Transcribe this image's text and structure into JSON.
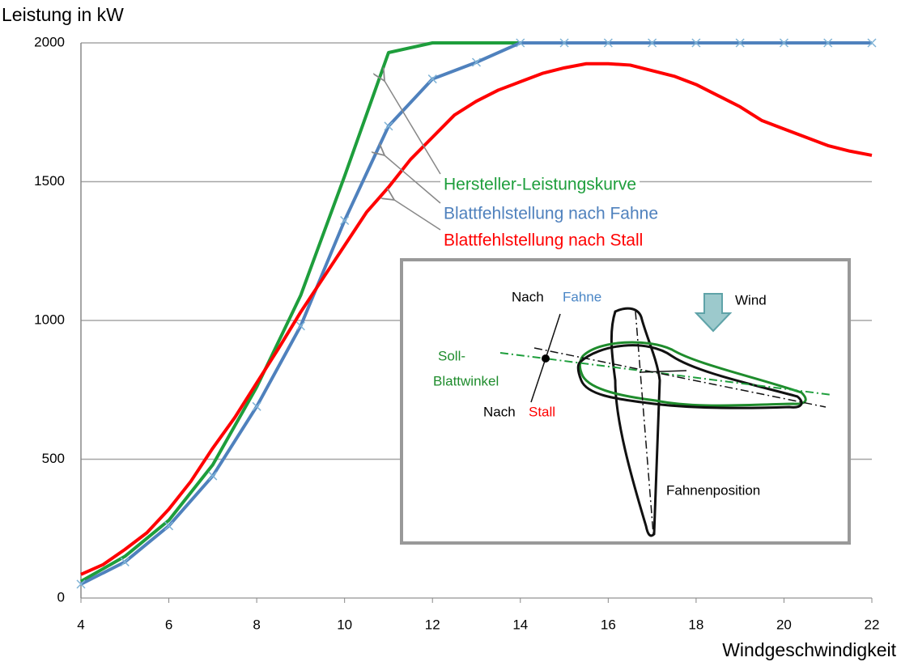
{
  "chart_data": {
    "type": "line",
    "y_axis_title": "Leistung in kW",
    "x_axis_title": "Windgeschwindigkeit",
    "xlim": [
      4,
      22
    ],
    "ylim": [
      0,
      2000
    ],
    "xticks": [
      4,
      6,
      8,
      10,
      12,
      14,
      16,
      18,
      20,
      22
    ],
    "yticks": [
      0,
      500,
      1000,
      1500,
      2000
    ],
    "grid": true,
    "series": [
      {
        "name": "Hersteller-Leistungskurve",
        "color": "#1e9e3c",
        "marker": "none",
        "x": [
          4,
          5,
          6,
          7,
          8,
          9,
          10,
          11,
          12,
          13,
          14,
          15,
          16,
          17,
          18,
          19,
          20,
          21,
          22
        ],
        "values": [
          60,
          150,
          280,
          480,
          760,
          1090,
          1520,
          1965,
          2000,
          2000,
          2000,
          2000,
          2000,
          2000,
          2000,
          2000,
          2000,
          2000,
          2000
        ]
      },
      {
        "name": "Blattfehlstellung nach Fahne",
        "color": "#4f81bd",
        "marker": "x",
        "x": [
          4,
          5,
          6,
          7,
          8,
          9,
          10,
          11,
          12,
          13,
          14,
          15,
          16,
          17,
          18,
          19,
          20,
          21,
          22
        ],
        "values": [
          50,
          130,
          260,
          440,
          690,
          980,
          1360,
          1700,
          1870,
          1930,
          2000,
          2000,
          2000,
          2000,
          2000,
          2000,
          2000,
          2000,
          2000
        ]
      },
      {
        "name": "Blattfehlstellung nach Stall",
        "color": "#ff0000",
        "marker": "none",
        "x": [
          4,
          4.5,
          5,
          5.5,
          6,
          6.5,
          7,
          7.5,
          8,
          8.5,
          9,
          9.5,
          10,
          10.5,
          11,
          11.5,
          12,
          12.5,
          13,
          13.5,
          14,
          14.5,
          15,
          15.5,
          16,
          16.5,
          17,
          17.5,
          18,
          18.5,
          19,
          19.5,
          20,
          20.5,
          21,
          21.5,
          22
        ],
        "values": [
          85,
          120,
          175,
          235,
          320,
          420,
          540,
          650,
          775,
          900,
          1030,
          1150,
          1270,
          1390,
          1480,
          1580,
          1660,
          1740,
          1790,
          1830,
          1860,
          1890,
          1910,
          1925,
          1925,
          1920,
          1900,
          1880,
          1850,
          1810,
          1770,
          1720,
          1690,
          1660,
          1630,
          1610,
          1595
        ]
      }
    ],
    "inset_labels": [
      "Nach",
      "Fahne",
      "Wind",
      "Soll-",
      "Blattwinkel",
      "Nach",
      "Stall",
      "Fahnenposition"
    ]
  }
}
